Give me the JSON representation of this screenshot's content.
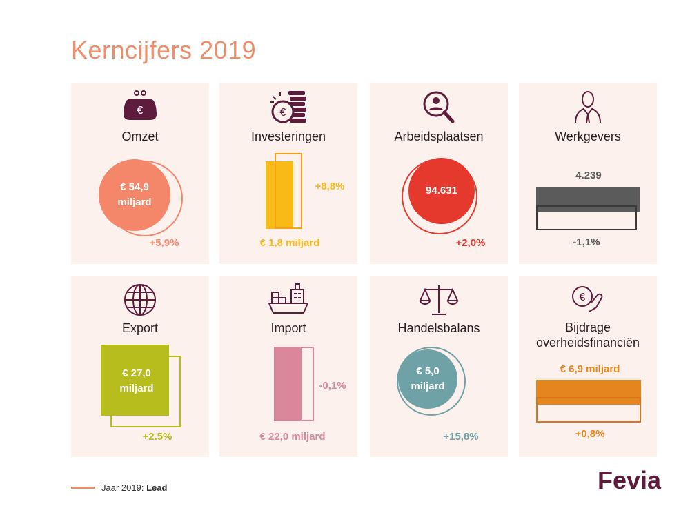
{
  "title": "Kerncijfers 2019",
  "cards": [
    {
      "title": "Omzet",
      "icon": "purse-euro-icon",
      "value": "€ 54,9 miljard",
      "value_l1": "€ 54,9",
      "value_l2": "miljard",
      "change": "+5,9%",
      "color": "#f4866a"
    },
    {
      "title": "Investeringen",
      "icon": "coins-euro-icon",
      "value": "€ 1,8 miljard",
      "change": "+8,8%",
      "color": "#f9b916"
    },
    {
      "title": "Arbeidsplaatsen",
      "icon": "magnifier-person-icon",
      "value": "94.631",
      "change": "+2,0%",
      "color": "#e5392e"
    },
    {
      "title": "Werkgevers",
      "icon": "businessman-icon",
      "value": "4.239",
      "change": "-1,1%",
      "color": "#5b5b5b"
    },
    {
      "title": "Export",
      "icon": "globe-icon",
      "value": "€ 27,0 miljard",
      "value_l1": "€ 27,0",
      "value_l2": "miljard",
      "change": "+2.5%",
      "color": "#b8bd1e"
    },
    {
      "title": "Import",
      "icon": "cargo-ship-icon",
      "value": "€ 22,0 miljard",
      "change": "-0,1%",
      "color": "#d98799"
    },
    {
      "title": "Handelsbalans",
      "icon": "scales-icon",
      "value": "€ 5,0 miljard",
      "value_l1": "€ 5,0",
      "value_l2": "miljard",
      "change": "+15,8%",
      "color": "#6ea2a6"
    },
    {
      "title_l1": "Bijdrage",
      "title_l2": "overheidsfinanciën",
      "icon": "hand-coin-euro-icon",
      "value": "€ 6,9 miljard",
      "change": "+0,8%",
      "color": "#e5851e"
    }
  ],
  "legend": {
    "label": "Jaar 2019:",
    "bold": "Lead",
    "color": "#ec8e6a"
  },
  "logo": "Fevia",
  "icon_color": "#5e1c3c"
}
